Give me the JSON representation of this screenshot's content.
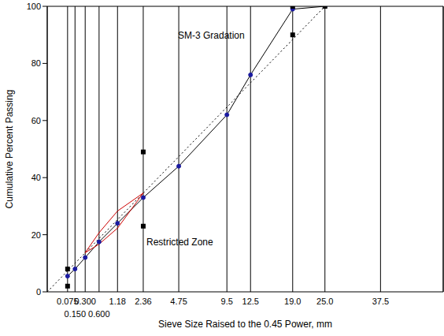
{
  "chart_data": {
    "type": "line",
    "x_label": "Sieve Size Raised to the 0.45 Power, mm",
    "y_label": "Cumulative Percent Passing",
    "annotations": [
      "SM-3 Gradation",
      "Restricted Zone"
    ],
    "xlim": [
      0,
      55
    ],
    "xticks": [
      0.075,
      {
        "value": 0.15,
        "label": "0.150"
      },
      {
        "value": 0.3,
        "label": "0.300"
      },
      {
        "value": 0.6,
        "label": "0.600"
      },
      1.18,
      2.36,
      4.75,
      9.5,
      12.5,
      {
        "value": 19,
        "label": "19.0"
      },
      {
        "value": 25,
        "label": "25.0"
      },
      37.5
    ],
    "ylim": [
      0,
      100
    ],
    "yticks": [
      0,
      20,
      40,
      60,
      80,
      100
    ],
    "grid": "x",
    "series": [
      {
        "type": "line",
        "color": "#000000",
        "marker": "circle",
        "x": [
          0.075,
          0.15,
          0.3,
          0.6,
          1.18,
          2.36,
          4.75,
          9.5,
          12.5,
          19,
          25
        ],
        "values": [
          5.5,
          8,
          12,
          17.5,
          24,
          33,
          44,
          62,
          76,
          99,
          100
        ]
      },
      {
        "type": "line",
        "color": "#000000",
        "line_style": "dotted",
        "x": [
          0,
          25
        ],
        "values": [
          0,
          100
        ]
      },
      {
        "type": "line",
        "color": "#cc0000",
        "x": [
          0.3,
          0.6,
          1.18,
          2.36,
          1.18,
          0.6,
          0.3
        ],
        "values": [
          13.7,
          20.7,
          28.3,
          34.6,
          22.3,
          16.7,
          13.7
        ]
      },
      {
        "type": "scatter",
        "color": "#000000",
        "marker": "square",
        "x": [
          0.075,
          0.075,
          2.36,
          2.36,
          19,
          19,
          25
        ],
        "values": [
          2,
          8,
          23,
          49,
          90,
          100,
          100
        ]
      }
    ]
  }
}
